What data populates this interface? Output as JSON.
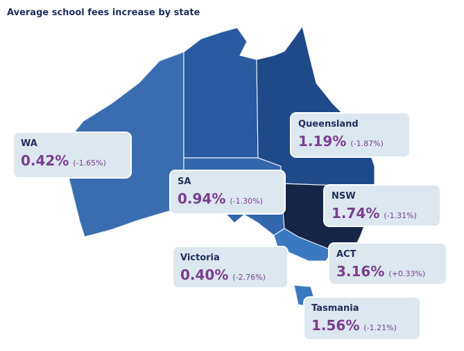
{
  "title": "Average school fees increase by state",
  "regions": [
    {
      "name": "WA",
      "value": "0.42%",
      "change": "(-1.65%)"
    },
    {
      "name": "Queensland",
      "value": "1.19%",
      "change": "(-1.87%)"
    },
    {
      "name": "SA",
      "value": "0.94%",
      "change": "(-1.30%)"
    },
    {
      "name": "NSW",
      "value": "1.74%",
      "change": "(-1.31%)"
    },
    {
      "name": "Victoria",
      "value": "0.40%",
      "change": "(-2.76%)"
    },
    {
      "name": "ACT",
      "value": "3.16%",
      "change": "(+0.33%)"
    },
    {
      "name": "Tasmania",
      "value": "1.56%",
      "change": "(-1.21%)"
    }
  ]
}
